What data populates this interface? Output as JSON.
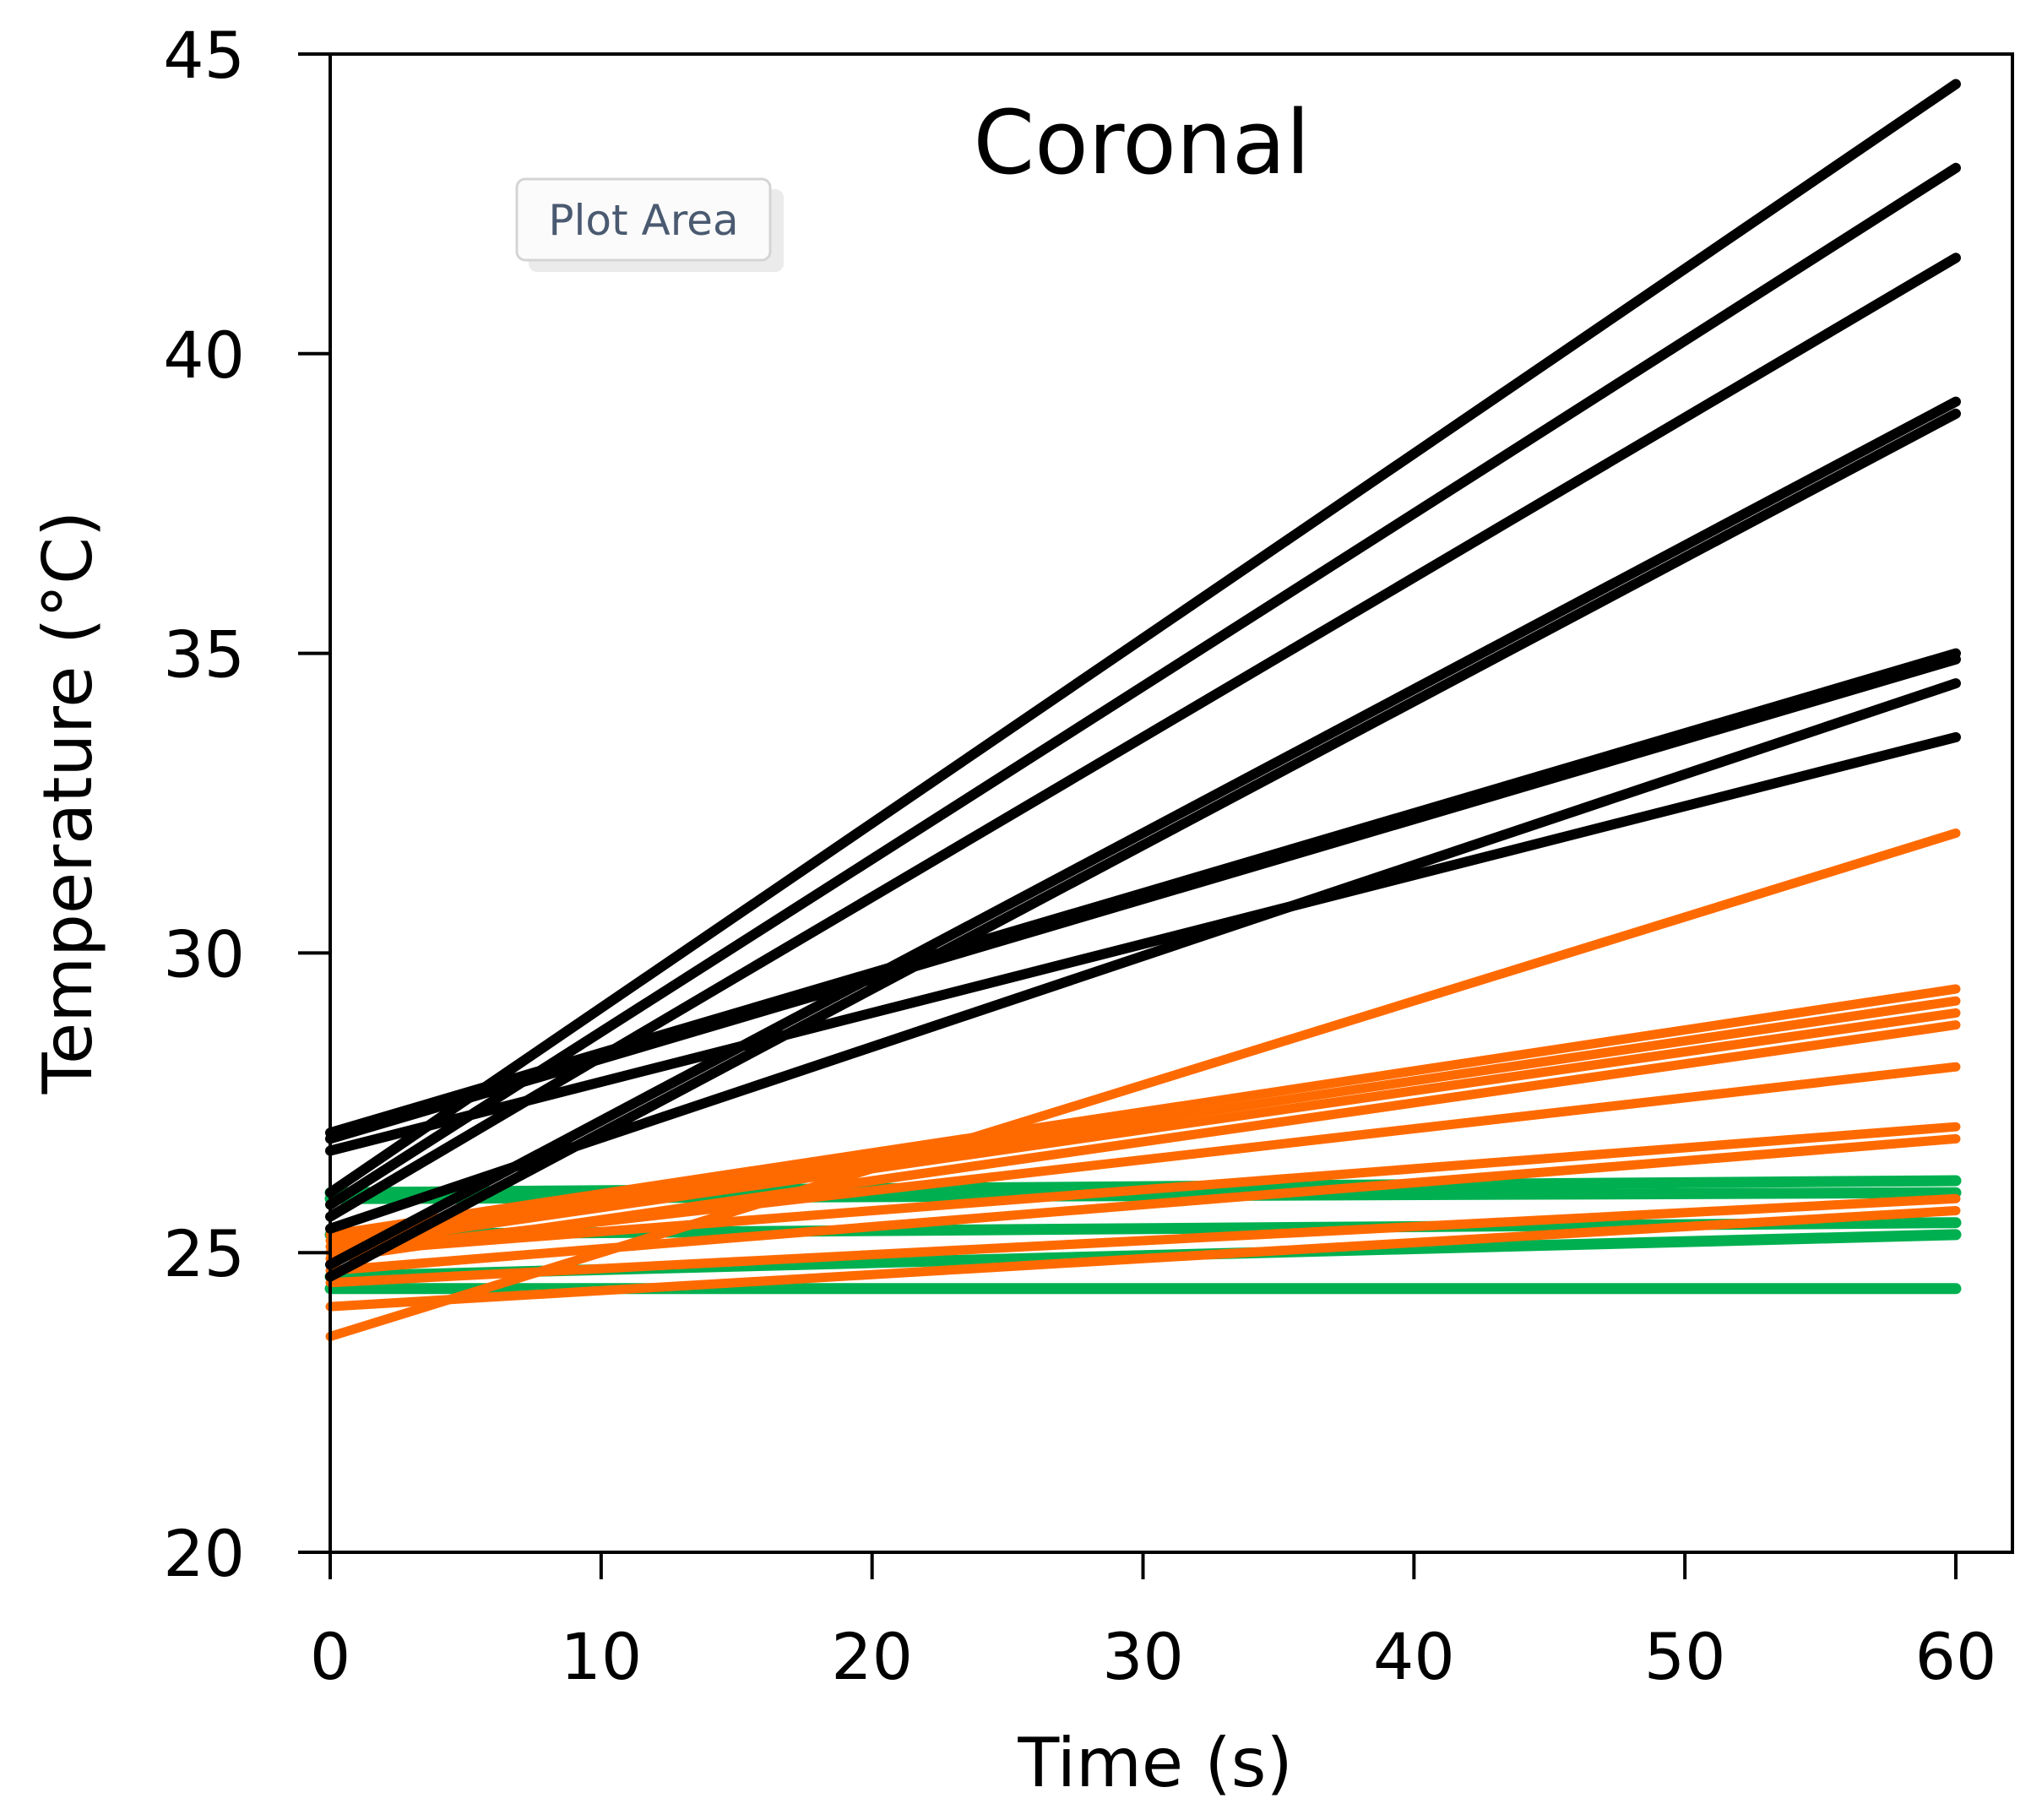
{
  "tooltip": {
    "label": "Plot Area"
  },
  "chart_data": {
    "type": "line",
    "title": "Coronal",
    "xlabel": "Time (s)",
    "ylabel": "Temperature (°C)",
    "xlim": [
      0,
      60
    ],
    "ylim": [
      20,
      45
    ],
    "xticks": [
      0,
      10,
      20,
      30,
      40,
      50,
      60
    ],
    "yticks": [
      20,
      25,
      30,
      35,
      40,
      45
    ],
    "grid": false,
    "colors": {
      "black": "#000000",
      "orange": "#ff6a00",
      "green": "#00b050"
    },
    "series": [
      {
        "color": "black",
        "x": [
          0,
          60
        ],
        "y": [
          26.0,
          44.5
        ]
      },
      {
        "color": "black",
        "x": [
          0,
          60
        ],
        "y": [
          25.8,
          43.1
        ]
      },
      {
        "color": "black",
        "x": [
          0,
          60
        ],
        "y": [
          25.6,
          41.6
        ]
      },
      {
        "color": "black",
        "x": [
          0,
          60
        ],
        "y": [
          24.8,
          39.2
        ]
      },
      {
        "color": "black",
        "x": [
          0,
          60
        ],
        "y": [
          24.6,
          39.0
        ]
      },
      {
        "color": "black",
        "x": [
          0,
          60
        ],
        "y": [
          26.9,
          34.9
        ]
      },
      {
        "color": "black",
        "x": [
          0,
          60
        ],
        "y": [
          27.0,
          35.0
        ]
      },
      {
        "color": "black",
        "x": [
          0,
          60
        ],
        "y": [
          26.7,
          33.6
        ]
      },
      {
        "color": "black",
        "x": [
          0,
          60
        ],
        "y": [
          25.4,
          34.5
        ]
      },
      {
        "color": "orange",
        "x": [
          0,
          60
        ],
        "y": [
          23.6,
          32.0
        ]
      },
      {
        "color": "orange",
        "x": [
          0,
          60
        ],
        "y": [
          25.3,
          29.4
        ]
      },
      {
        "color": "orange",
        "x": [
          0,
          60
        ],
        "y": [
          25.2,
          29.2
        ]
      },
      {
        "color": "orange",
        "x": [
          0,
          60
        ],
        "y": [
          25.1,
          29.0
        ]
      },
      {
        "color": "orange",
        "x": [
          0,
          60
        ],
        "y": [
          24.9,
          28.8
        ]
      },
      {
        "color": "orange",
        "x": [
          0,
          60
        ],
        "y": [
          25.0,
          28.1
        ]
      },
      {
        "color": "orange",
        "x": [
          0,
          60
        ],
        "y": [
          25.0,
          27.1
        ]
      },
      {
        "color": "orange",
        "x": [
          0,
          60
        ],
        "y": [
          24.7,
          26.9
        ]
      },
      {
        "color": "orange",
        "x": [
          0,
          60
        ],
        "y": [
          24.5,
          25.9
        ]
      },
      {
        "color": "orange",
        "x": [
          0,
          60
        ],
        "y": [
          24.1,
          25.7
        ]
      },
      {
        "color": "green",
        "x": [
          0,
          60
        ],
        "y": [
          26.0,
          26.2
        ]
      },
      {
        "color": "green",
        "x": [
          0,
          60
        ],
        "y": [
          25.9,
          26.0
        ]
      },
      {
        "color": "green",
        "x": [
          0,
          60
        ],
        "y": [
          25.3,
          25.5
        ]
      },
      {
        "color": "green",
        "x": [
          0,
          60
        ],
        "y": [
          24.6,
          25.3
        ]
      },
      {
        "color": "green",
        "x": [
          0,
          60
        ],
        "y": [
          24.4,
          24.4
        ]
      }
    ]
  }
}
